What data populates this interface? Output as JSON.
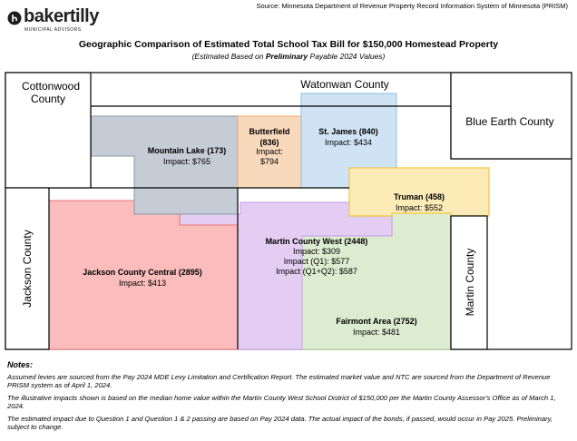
{
  "logo": {
    "name": "bakertilly",
    "subtitle": "MUNICIPAL ADVISORS"
  },
  "source": "Source: Minnesota Department of Revenue Property Record Information System of Minnesota (PRISM)",
  "title": "Geographic Comparison of Estimated Total School Tax Bill for $150,000 Homestead Property",
  "subtitle": {
    "prefix": "(Estimated Based on ",
    "emphasis": "Preliminary",
    "suffix": " Payable 2024 Values)"
  },
  "counties": {
    "cottonwood_line1": "Cottonwood",
    "cottonwood_line2": "County",
    "watonwan": "Watonwan County",
    "blue_earth": "Blue Earth County",
    "jackson": "Jackson County",
    "martin": "Martin County"
  },
  "districts": {
    "mountain_lake": {
      "name": "Mountain Lake (173)",
      "impact": "Impact: $765",
      "color": "#c5ccd6"
    },
    "butterfield": {
      "name_line1": "Butterfield",
      "name_line2": "(836)",
      "impact_line1": "Impact:",
      "impact_line2": "$794",
      "color": "#f9d9bc"
    },
    "st_james": {
      "name": "St. James (840)",
      "impact": "Impact: $434",
      "color": "#cfe3f4"
    },
    "truman": {
      "name": "Truman (458)",
      "impact": "Impact: $552",
      "color": "#fcebb6"
    },
    "jackson_county_central": {
      "name": "Jackson County Central (2895)",
      "impact": "Impact: $413",
      "color": "#fbbcbc"
    },
    "martin_county_west": {
      "name": "Martin County West (2448)",
      "impact": "Impact: $309",
      "impact_q1": "Impact (Q1): $577",
      "impact_q1q2": "Impact (Q1+Q2): $587",
      "color": "#e3cdf3"
    },
    "fairmont": {
      "name": "Fairmont Area (2752)",
      "impact": "Impact: $481",
      "color": "#dcecd0"
    }
  },
  "notes": {
    "heading": "Notes:",
    "items": [
      "Assumed levies are sourced from the Pay 2024 MDE Levy Limitation and Certification Report. The estimated market value and NTC are sourced from the Department of Revenue PRISM system as of April 1, 2024.",
      "The illustrative impacts shown is based on the median home value within the Martin County West School District of $150,000 per the Martin County Assessor's Office as of March 1, 2024.",
      "The estimated impact due to Question 1 and Question 1 & 2 passing are based on Pay 2024 data. The actual impact of the bonds, if passed, would occur in Pay 2025. Preliminary, subject to change."
    ]
  }
}
